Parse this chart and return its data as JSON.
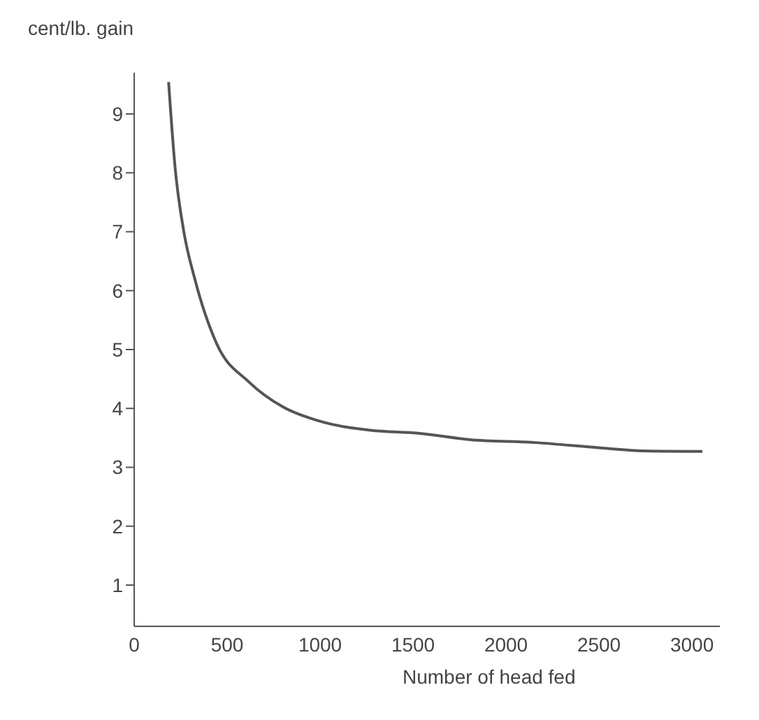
{
  "chart_data": {
    "type": "line",
    "ylabel": "cent/lb. gain",
    "xlabel": "Number of head fed",
    "x": [
      185,
      220,
      267,
      325,
      442,
      617,
      803,
      990,
      1270,
      1527,
      1807,
      2157,
      2507,
      2741,
      3056
    ],
    "series": [
      {
        "color": "#555555",
        "values": [
          9.54,
          8.09,
          7.0,
          6.21,
          5.11,
          4.45,
          4.02,
          3.79,
          3.63,
          3.58,
          3.47,
          3.42,
          3.33,
          3.28,
          3.27
        ]
      }
    ],
    "xlim": [
      0,
      3150
    ],
    "xticks": [
      0,
      500,
      1000,
      1500,
      2000,
      2500,
      3000
    ],
    "ylim": [
      0.3,
      9.7
    ],
    "yticks": [
      1,
      2,
      3,
      4,
      5,
      6,
      7,
      8,
      9
    ],
    "grid": false,
    "marker": "none",
    "line_style": "solid",
    "legend": false
  }
}
